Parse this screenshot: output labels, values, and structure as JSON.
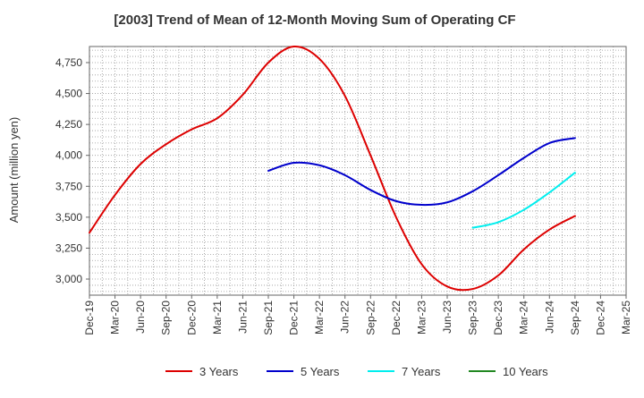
{
  "chart_data": {
    "type": "line",
    "title": "[2003]  Trend of Mean of 12-Month Moving Sum of Operating CF",
    "ylabel": "Amount (million yen)",
    "xlabel": "",
    "ylim": [
      2870,
      4880
    ],
    "yticks": [
      3000,
      3250,
      3500,
      3750,
      4000,
      4250,
      4500,
      4750
    ],
    "ytick_labels": [
      "3,000",
      "3,250",
      "3,500",
      "3,750",
      "4,000",
      "4,250",
      "4,500",
      "4,750"
    ],
    "categories": [
      "Dec-19",
      "Mar-20",
      "Jun-20",
      "Sep-20",
      "Dec-20",
      "Mar-21",
      "Jun-21",
      "Sep-21",
      "Dec-21",
      "Mar-22",
      "Jun-22",
      "Sep-22",
      "Dec-22",
      "Mar-23",
      "Jun-23",
      "Sep-23",
      "Dec-23",
      "Mar-24",
      "Jun-24",
      "Sep-24",
      "Dec-24",
      "Mar-25"
    ],
    "grid": true,
    "legend_position": "bottom",
    "series": [
      {
        "name": "3 Years",
        "color": "#dd0000",
        "values": [
          3375,
          3680,
          3930,
          4090,
          4210,
          4300,
          4490,
          4750,
          4880,
          4780,
          4480,
          4000,
          3500,
          3120,
          2940,
          2920,
          3030,
          3240,
          3400,
          3510,
          null,
          null
        ]
      },
      {
        "name": "5 Years",
        "color": "#0000cc",
        "values": [
          null,
          null,
          null,
          null,
          null,
          null,
          null,
          3875,
          3940,
          3920,
          3840,
          3720,
          3630,
          3600,
          3620,
          3710,
          3840,
          3980,
          4100,
          4140,
          null,
          null
        ]
      },
      {
        "name": "7 Years",
        "color": "#00eeee",
        "values": [
          null,
          null,
          null,
          null,
          null,
          null,
          null,
          null,
          null,
          null,
          null,
          null,
          null,
          null,
          null,
          3415,
          3460,
          3560,
          3700,
          3860,
          null,
          null
        ]
      },
      {
        "name": "10 Years",
        "color": "#228822",
        "values": [
          null,
          null,
          null,
          null,
          null,
          null,
          null,
          null,
          null,
          null,
          null,
          null,
          null,
          null,
          null,
          null,
          null,
          null,
          null,
          null,
          null,
          null
        ]
      }
    ]
  }
}
